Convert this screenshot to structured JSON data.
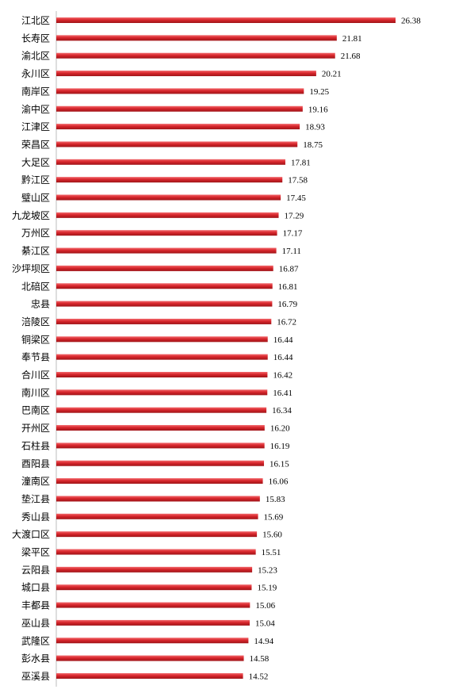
{
  "chart_data": {
    "type": "bar",
    "orientation": "horizontal",
    "categories": [
      "江北区",
      "长寿区",
      "渝北区",
      "永川区",
      "南岸区",
      "渝中区",
      "江津区",
      "荣昌区",
      "大足区",
      "黔江区",
      "璧山区",
      "九龙坡区",
      "万州区",
      "綦江区",
      "沙坪坝区",
      "北碚区",
      "忠县",
      "涪陵区",
      "铜梁区",
      "奉节县",
      "合川区",
      "南川区",
      "巴南区",
      "开州区",
      "石柱县",
      "酉阳县",
      "潼南区",
      "垫江县",
      "秀山县",
      "大渡口区",
      "梁平区",
      "云阳县",
      "城口县",
      "丰都县",
      "巫山县",
      "武隆区",
      "彭水县",
      "巫溪县"
    ],
    "values": [
      26.38,
      21.81,
      21.68,
      20.21,
      19.25,
      19.16,
      18.93,
      18.75,
      17.81,
      17.58,
      17.45,
      17.29,
      17.17,
      17.11,
      16.87,
      16.81,
      16.79,
      16.72,
      16.44,
      16.44,
      16.42,
      16.41,
      16.34,
      16.2,
      16.19,
      16.15,
      16.06,
      15.83,
      15.69,
      15.6,
      15.51,
      15.23,
      15.19,
      15.06,
      15.04,
      14.94,
      14.58,
      14.52
    ],
    "value_labels": [
      "26.38",
      "21.81",
      "21.68",
      "20.21",
      "19.25",
      "19.16",
      "18.93",
      "18.75",
      "17.81",
      "17.58",
      "17.45",
      "17.29",
      "17.17",
      "17.11",
      "16.87",
      "16.81",
      "16.79",
      "16.72",
      "16.44",
      "16.44",
      "16.42",
      "16.41",
      "16.34",
      "16.20",
      "16.19",
      "16.15",
      "16.06",
      "15.83",
      "15.69",
      "15.60",
      "15.51",
      "15.23",
      "15.19",
      "15.06",
      "15.04",
      "14.94",
      "14.58",
      "14.52"
    ],
    "title": "",
    "xlabel": "",
    "ylabel": "",
    "xlim": [
      0,
      26.38
    ],
    "grid": false,
    "legend": "none",
    "bar_color": "#c8262b"
  }
}
